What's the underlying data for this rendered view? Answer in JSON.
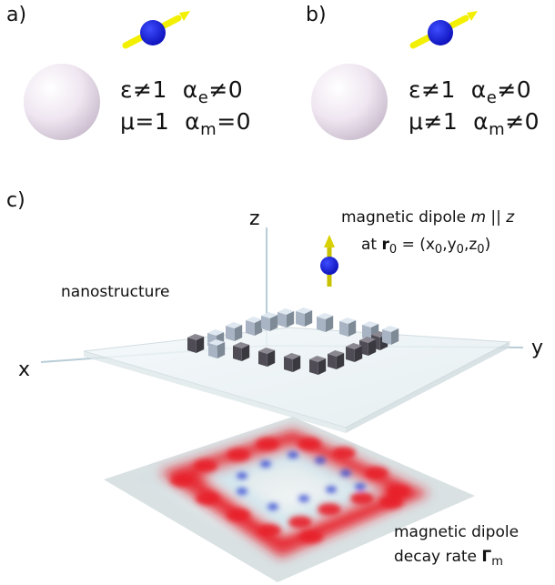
{
  "panel_a": {
    "label": "a)",
    "eq_line1": {
      "eps": "ε≠1",
      "alpha": "α",
      "alpha_sub": "e",
      "alpha_rel": "≠0"
    },
    "eq_line2": {
      "mu": "μ=1",
      "alpha": "α",
      "alpha_sub": "m",
      "alpha_rel": "=0"
    }
  },
  "panel_b": {
    "label": "b)",
    "eq_line1": {
      "eps": "ε≠1",
      "alpha": "α",
      "alpha_sub": "e",
      "alpha_rel": "≠0"
    },
    "eq_line2": {
      "mu": "μ≠1",
      "alpha": "α",
      "alpha_sub": "m",
      "alpha_rel": "≠0"
    }
  },
  "panel_c": {
    "label": "c)",
    "axes": {
      "z": "z",
      "x": "x",
      "y": "y"
    },
    "nanostructure_label": "nanostructure",
    "dipole_caption_line1": {
      "text": "magnetic dipole ",
      "m": "m",
      "parallel": " || ",
      "z": "z"
    },
    "dipole_caption_line2": {
      "at": "at ",
      "r": "r",
      "r_sub": "0",
      "eq": " = (x",
      "x_sub": "0",
      "c1": ",y",
      "y_sub": "0",
      "c2": ",z",
      "z_sub": "0",
      "close": ")"
    },
    "decay_caption_line1": "magnetic dipole",
    "decay_caption_line2": {
      "text": "decay rate ",
      "gamma": "Γ",
      "gamma_sub": "m"
    }
  },
  "colors": {
    "sphere": "#ece4ee",
    "dipole_ball": "#1a1aff",
    "dipole_arrow": "#f2ef00",
    "cube": "#4f4c55",
    "cube_light": "#a8b4c4",
    "map_high": "#e8202a",
    "map_low": "#2a3fd0"
  }
}
